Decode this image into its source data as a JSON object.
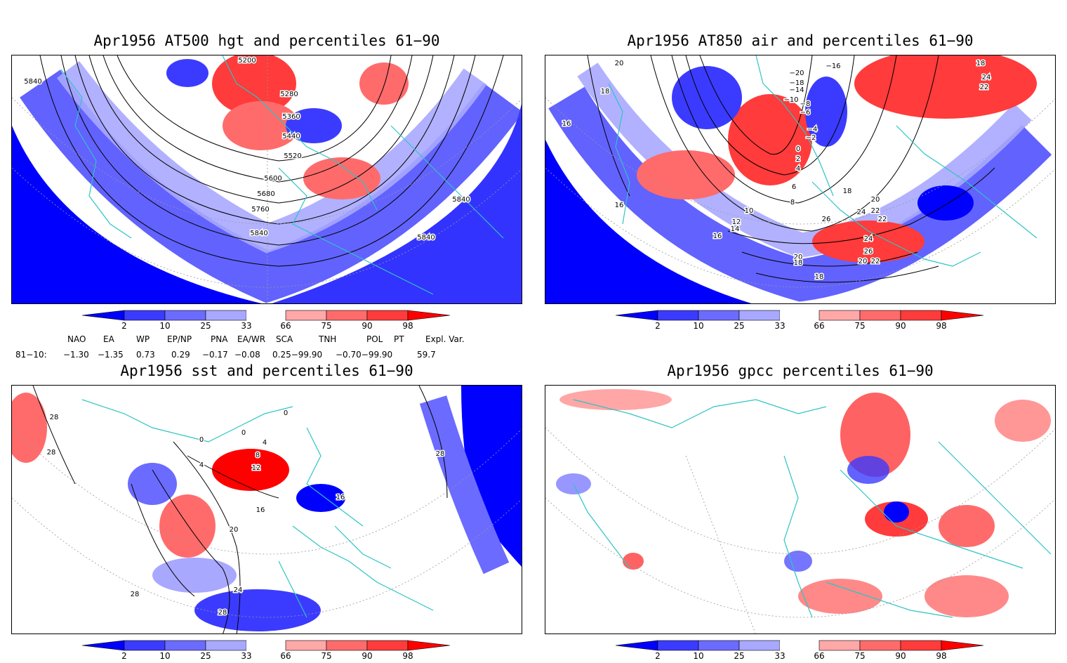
{
  "panels": [
    {
      "id": "p1",
      "title": "Apr1956 AT500 hgt and percentiles 61−90",
      "contour_labels": [
        "5200",
        "5280",
        "5360",
        "5440",
        "5520",
        "5600",
        "5680",
        "5760",
        "5840",
        "5840",
        "5840",
        "5840"
      ]
    },
    {
      "id": "p2",
      "title": "Apr1956 AT850 air and percentiles 61−90",
      "contour_labels": [
        "20",
        "18",
        "16",
        "16",
        "−20",
        "−18",
        "−14",
        "−10",
        "−8",
        "−6",
        "−16",
        "−4",
        "−2",
        "0",
        "2",
        "4",
        "6",
        "8",
        "10",
        "12",
        "14",
        "16",
        "18",
        "20",
        "22",
        "24",
        "26",
        "22",
        "24",
        "26",
        "20",
        "20",
        "18",
        "22",
        "18",
        "18",
        "24",
        "22"
      ]
    },
    {
      "id": "p3",
      "title": "Apr1956 sst and percentiles 61−90",
      "contour_labels": [
        "28",
        "28",
        "0",
        "4",
        "0",
        "4",
        "8",
        "12",
        "16",
        "16",
        "20",
        "24",
        "28",
        "28",
        "28",
        "0"
      ]
    },
    {
      "id": "p4",
      "title": "Apr1956 gpcc percentiles 61−90",
      "contour_labels": []
    }
  ],
  "colorbar": {
    "labels": [
      "2",
      "10",
      "25",
      "33",
      "66",
      "75",
      "90",
      "98"
    ],
    "colors": [
      "#0000ff",
      "#3b3bff",
      "#6b6bff",
      "#a8a8ff",
      "#ffa8a8",
      "#ff6b6b",
      "#ff3b3b",
      "#ff0000"
    ]
  },
  "indices": {
    "header": [
      "NAO",
      "EA",
      "WP",
      "EP/NP",
      "PNA",
      "EA/WR",
      "SCA",
      "TNH",
      "POL",
      "PT",
      "Expl. Var."
    ],
    "row_label": "81−10:",
    "values": [
      "−1.30",
      "−1.35",
      "0.73",
      "0.29",
      "−0.17",
      "−0.08",
      "0.25−99.90",
      "−0.70−99.90",
      "59.7"
    ]
  },
  "map_colors": {
    "coast": "#2ec4c4",
    "graticule": "#999999",
    "contour": "#000000"
  }
}
